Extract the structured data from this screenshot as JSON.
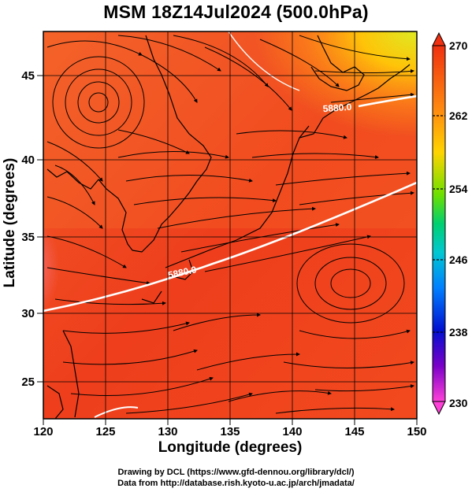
{
  "title": "MSM 18Z14Jul2024 (500.0hPa)",
  "x_axis": {
    "label": "Longitude (degrees)",
    "ticks": [
      "120",
      "125",
      "130",
      "135",
      "140",
      "145",
      "150"
    ]
  },
  "y_axis": {
    "label": "Latitude  (degrees)",
    "ticks": [
      "25",
      "30",
      "35",
      "40",
      "45"
    ]
  },
  "colorbar": {
    "ticks": [
      "270",
      "262",
      "254",
      "246",
      "238",
      "230"
    ],
    "colors": [
      "#ff0000",
      "#ff7a00",
      "#ffd400",
      "#6ce000",
      "#00d000",
      "#00c8c8",
      "#0080ff",
      "#0000d0",
      "#7a00c8",
      "#ff00cc"
    ]
  },
  "contours": [
    {
      "label": "5880.0"
    },
    {
      "label": "5880.0"
    }
  ],
  "credits": {
    "line1": "Drawing by DCL (https://www.gfd-dennou.org/library/dcl/)",
    "line2": "Data from http://database.rish.kyoto-u.ac.jp/arch/jmadata/"
  }
}
